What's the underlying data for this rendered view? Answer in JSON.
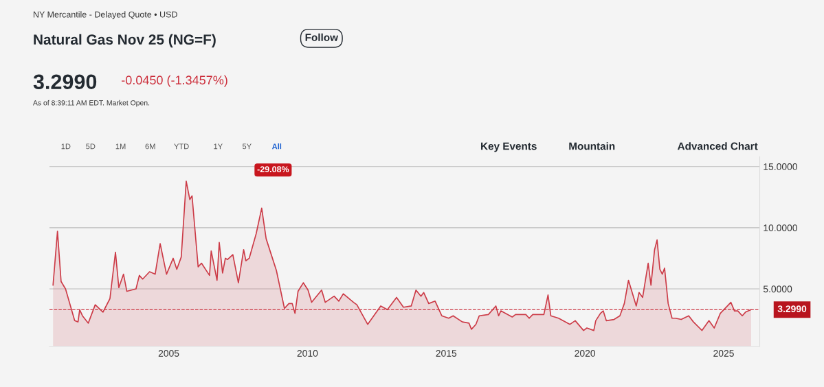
{
  "chart_data": {
    "type": "area",
    "title": "Natural Gas Nov 25 (NG=F)",
    "subtitle": "NY Mercantile - Delayed Quote • USD",
    "annotations": [
      "Follow",
      "3.2990",
      "-0.0450 (-1.3457%)",
      "As of 8:39:11 AM EDT. Market Open.",
      "1D",
      "5D",
      "1M",
      "6M",
      "YTD",
      "1Y",
      "5Y",
      "All",
      "Key Events",
      "Mountain",
      "Advanced Chart",
      "-29.08%"
    ],
    "series": [
      {
        "color": "#cc3b47",
        "x": [
          2000.83,
          2000.99,
          2001.12,
          2001.28,
          2001.61,
          2001.73,
          2001.79,
          2001.89,
          2002.1,
          2002.35,
          2002.63,
          2002.88,
          2003.08,
          2003.2,
          2003.37,
          2003.49,
          2003.82,
          2003.94,
          2004.06,
          2004.31,
          2004.51,
          2004.69,
          2004.92,
          2005.16,
          2005.29,
          2005.45,
          2005.63,
          2005.76,
          2005.84,
          2006.06,
          2006.18,
          2006.47,
          2006.53,
          2006.74,
          2006.82,
          2006.94,
          2007.04,
          2007.12,
          2007.31,
          2007.51,
          2007.7,
          2007.78,
          2007.9,
          2008.15,
          2008.35,
          2008.51,
          2008.88,
          2009.17,
          2009.33,
          2009.45,
          2009.55,
          2009.66,
          2009.85,
          2010.02,
          2010.15,
          2010.51,
          2010.64,
          2010.96,
          2011.13,
          2011.29,
          2011.66,
          2011.78,
          2012.17,
          2012.39,
          2012.64,
          2012.88,
          2013.21,
          2013.46,
          2013.74,
          2013.91,
          2014.09,
          2014.19,
          2014.37,
          2014.6,
          2014.84,
          2015.09,
          2015.25,
          2015.58,
          2015.82,
          2015.91,
          2016.07,
          2016.19,
          2016.52,
          2016.79,
          2016.89,
          2016.97,
          2017.38,
          2017.5,
          2017.87,
          2017.99,
          2018.12,
          2018.19,
          2018.52,
          2018.67,
          2018.77,
          2019.05,
          2019.46,
          2019.65,
          2019.95,
          2020.07,
          2020.32,
          2020.39,
          2020.56,
          2020.66,
          2020.77,
          2021.05,
          2021.26,
          2021.42,
          2021.57,
          2021.85,
          2021.95,
          2022.08,
          2022.28,
          2022.38,
          2022.51,
          2022.6,
          2022.7,
          2022.79,
          2022.87,
          2023.0,
          2023.14,
          2023.26,
          2023.47,
          2023.74,
          2023.91,
          2024.22,
          2024.47,
          2024.66,
          2024.88,
          2025.26,
          2025.39,
          2025.51,
          2025.67,
          2025.79,
          2025.99
        ],
        "values": [
          5.3,
          9.7,
          5.6,
          5.0,
          2.4,
          2.3,
          3.3,
          2.8,
          2.2,
          3.7,
          3.1,
          4.2,
          8.0,
          5.1,
          6.2,
          4.8,
          5.0,
          6.1,
          5.8,
          6.4,
          6.2,
          8.7,
          6.2,
          7.5,
          6.6,
          7.6,
          13.8,
          12.3,
          12.6,
          6.8,
          7.1,
          6.1,
          8.1,
          5.7,
          8.8,
          6.3,
          7.5,
          7.4,
          7.8,
          5.5,
          8.2,
          7.3,
          7.5,
          9.5,
          11.6,
          9.1,
          6.5,
          3.4,
          3.8,
          3.8,
          3.0,
          4.8,
          5.5,
          4.9,
          3.9,
          4.9,
          3.9,
          4.4,
          4.0,
          4.6,
          3.9,
          3.7,
          2.1,
          2.8,
          3.6,
          3.3,
          4.3,
          3.5,
          3.6,
          4.9,
          4.4,
          4.7,
          3.8,
          4.0,
          2.8,
          2.6,
          2.8,
          2.3,
          2.2,
          1.7,
          2.1,
          2.8,
          2.9,
          3.6,
          2.8,
          3.2,
          2.7,
          2.9,
          2.9,
          2.6,
          2.9,
          2.9,
          2.9,
          4.5,
          2.8,
          2.6,
          2.1,
          2.4,
          1.6,
          1.8,
          1.6,
          2.4,
          3.0,
          3.2,
          2.4,
          2.5,
          2.8,
          3.8,
          5.7,
          3.6,
          4.7,
          4.3,
          7.1,
          5.3,
          8.2,
          9.0,
          6.6,
          6.2,
          6.7,
          3.8,
          2.6,
          2.6,
          2.5,
          2.8,
          2.3,
          1.6,
          2.4,
          1.8,
          3.0,
          3.9,
          3.2,
          3.2,
          2.8,
          3.1,
          3.299
        ]
      }
    ],
    "xlim": [
      2000.7,
      2026.3
    ],
    "ylim": [
      0.3,
      15.8
    ],
    "xticks": [
      2005,
      2010,
      2015,
      2020,
      2025
    ],
    "yticks": [
      {
        "value": 5,
        "label": "5.0000"
      },
      {
        "value": 10,
        "label": "10.0000"
      },
      {
        "value": 15,
        "label": "15.0000"
      }
    ],
    "ref_lines": [
      {
        "axis": "y",
        "value": 3.299,
        "label": "3.2990",
        "color": "#cc3b47",
        "line_style": "dashed"
      }
    ],
    "grid": "y",
    "marker": "none",
    "line_style": "solid"
  }
}
